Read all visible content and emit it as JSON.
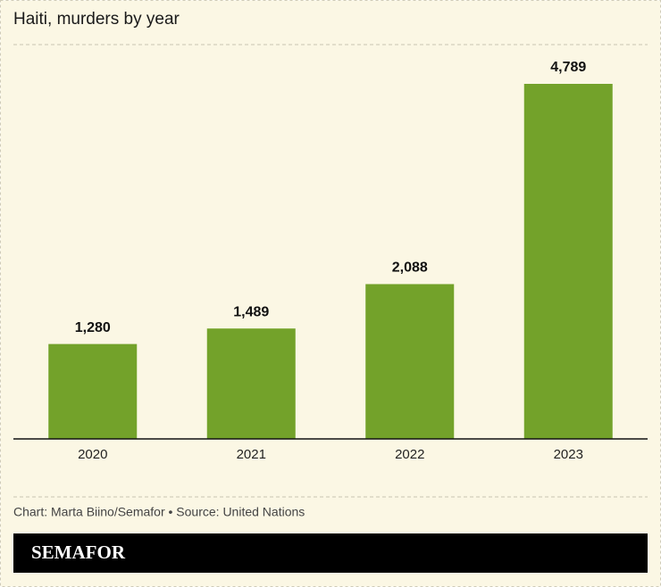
{
  "chart_data": {
    "type": "bar",
    "title": "Haiti, murders by year",
    "categories": [
      "2020",
      "2021",
      "2022",
      "2023"
    ],
    "values": [
      1280,
      1489,
      2088,
      4789
    ],
    "value_labels": [
      "1,280",
      "1,489",
      "2,088",
      "4,789"
    ],
    "color": "#73a22a"
  },
  "footer": {
    "credit": "Chart: Marta Biino/Semafor • Source: United Nations",
    "logo": "SEMAFOR"
  }
}
